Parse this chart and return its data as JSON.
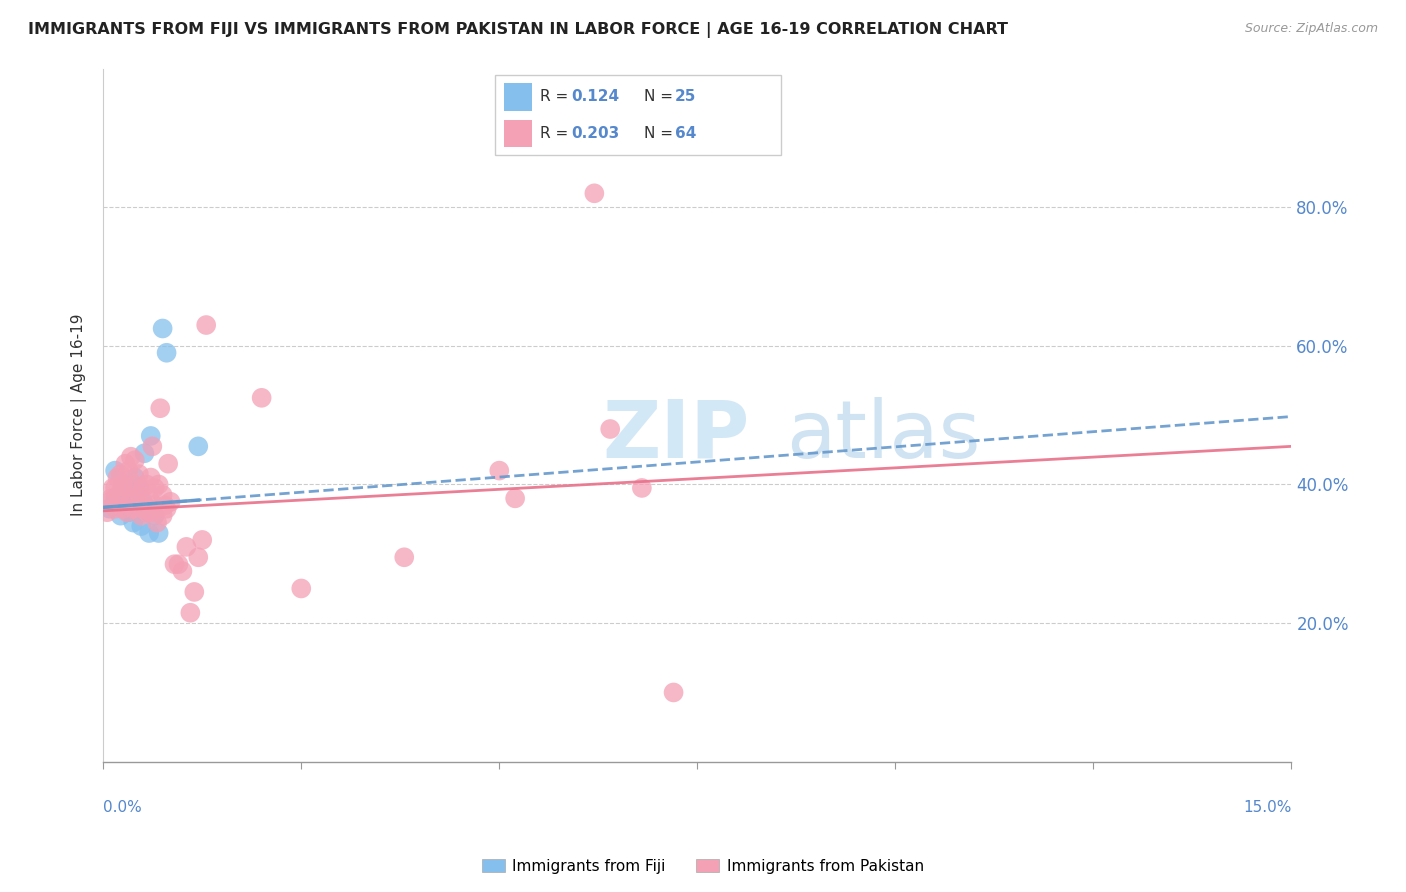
{
  "title": "IMMIGRANTS FROM FIJI VS IMMIGRANTS FROM PAKISTAN IN LABOR FORCE | AGE 16-19 CORRELATION CHART",
  "source": "Source: ZipAtlas.com",
  "ylabel": "In Labor Force | Age 16-19",
  "fiji_color": "#85bfed",
  "pakistan_color": "#f4a0b5",
  "fiji_line_color": "#6699cc",
  "pakistan_line_color": "#e8708a",
  "legend_fiji_r": "0.124",
  "legend_fiji_n": "25",
  "legend_pakistan_r": "0.203",
  "legend_pakistan_n": "64",
  "xlim": [
    0.0,
    0.15
  ],
  "ylim": [
    0.0,
    1.0
  ],
  "fiji_x": [
    0.0008,
    0.0015,
    0.0015,
    0.002,
    0.0022,
    0.0025,
    0.0028,
    0.003,
    0.0032,
    0.0035,
    0.0038,
    0.004,
    0.0042,
    0.0045,
    0.0048,
    0.005,
    0.0052,
    0.0055,
    0.0058,
    0.006,
    0.0065,
    0.007,
    0.0075,
    0.008,
    0.012
  ],
  "fiji_y": [
    0.365,
    0.38,
    0.42,
    0.37,
    0.355,
    0.4,
    0.375,
    0.385,
    0.36,
    0.39,
    0.345,
    0.41,
    0.38,
    0.395,
    0.34,
    0.375,
    0.445,
    0.36,
    0.33,
    0.47,
    0.355,
    0.33,
    0.625,
    0.59,
    0.455
  ],
  "pakistan_x": [
    0.0005,
    0.0008,
    0.001,
    0.0012,
    0.0015,
    0.0015,
    0.0018,
    0.002,
    0.0022,
    0.0022,
    0.0025,
    0.0025,
    0.0028,
    0.003,
    0.003,
    0.0032,
    0.0035,
    0.0035,
    0.0038,
    0.004,
    0.004,
    0.0042,
    0.0045,
    0.0045,
    0.0048,
    0.005,
    0.005,
    0.0052,
    0.0055,
    0.0055,
    0.0058,
    0.006,
    0.006,
    0.0062,
    0.0065,
    0.0065,
    0.0068,
    0.007,
    0.007,
    0.0072,
    0.0075,
    0.0075,
    0.0078,
    0.008,
    0.0082,
    0.0085,
    0.009,
    0.0095,
    0.01,
    0.0105,
    0.011,
    0.0115,
    0.012,
    0.0125,
    0.013,
    0.02,
    0.025,
    0.038,
    0.05,
    0.052,
    0.062,
    0.064,
    0.068,
    0.072
  ],
  "pakistan_y": [
    0.36,
    0.375,
    0.38,
    0.395,
    0.365,
    0.395,
    0.41,
    0.38,
    0.39,
    0.415,
    0.365,
    0.4,
    0.43,
    0.36,
    0.395,
    0.42,
    0.44,
    0.38,
    0.365,
    0.4,
    0.435,
    0.375,
    0.385,
    0.415,
    0.355,
    0.365,
    0.395,
    0.37,
    0.36,
    0.4,
    0.38,
    0.36,
    0.41,
    0.455,
    0.37,
    0.395,
    0.345,
    0.365,
    0.4,
    0.51,
    0.355,
    0.385,
    0.37,
    0.365,
    0.43,
    0.375,
    0.285,
    0.285,
    0.275,
    0.31,
    0.215,
    0.245,
    0.295,
    0.32,
    0.63,
    0.525,
    0.25,
    0.295,
    0.42,
    0.38,
    0.82,
    0.48,
    0.395,
    0.1
  ],
  "fiji_trendline_x0": 0.0,
  "fiji_trendline_y0": 0.367,
  "fiji_trendline_x1": 0.15,
  "fiji_trendline_y1": 0.498,
  "pakistan_trendline_x0": 0.0,
  "pakistan_trendline_y0": 0.362,
  "pakistan_trendline_x1": 0.15,
  "pakistan_trendline_y1": 0.455
}
